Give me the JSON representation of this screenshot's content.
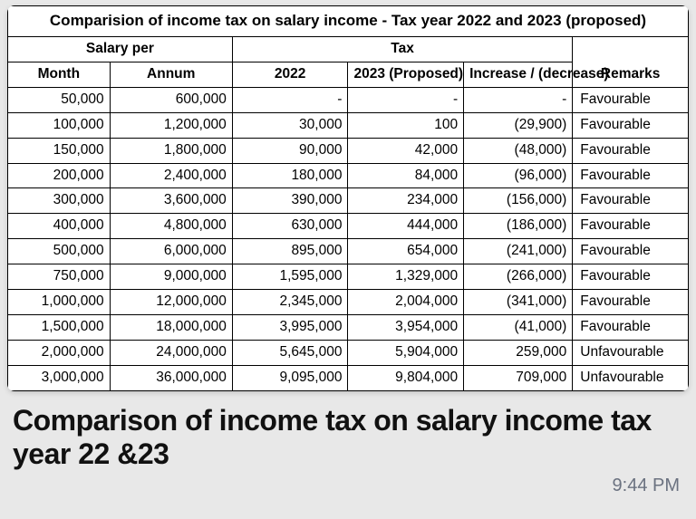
{
  "table": {
    "title": "Comparision of income tax on salary income - Tax year 2022 and 2023 (proposed)",
    "header_group_salary": "Salary per",
    "header_group_tax": "Tax",
    "columns": {
      "month": "Month",
      "annum": "Annum",
      "y2022": "2022",
      "y2023": "2023 (Proposed)",
      "incdec": "Increase / (decrease)",
      "remarks": "Remarks"
    },
    "rows": [
      {
        "month": "50,000",
        "annum": "600,000",
        "y2022": "-",
        "y2023": "-",
        "incdec": "-",
        "remarks": "Favourable"
      },
      {
        "month": "100,000",
        "annum": "1,200,000",
        "y2022": "30,000",
        "y2023": "100",
        "incdec": "(29,900)",
        "remarks": "Favourable"
      },
      {
        "month": "150,000",
        "annum": "1,800,000",
        "y2022": "90,000",
        "y2023": "42,000",
        "incdec": "(48,000)",
        "remarks": "Favourable"
      },
      {
        "month": "200,000",
        "annum": "2,400,000",
        "y2022": "180,000",
        "y2023": "84,000",
        "incdec": "(96,000)",
        "remarks": "Favourable"
      },
      {
        "month": "300,000",
        "annum": "3,600,000",
        "y2022": "390,000",
        "y2023": "234,000",
        "incdec": "(156,000)",
        "remarks": "Favourable"
      },
      {
        "month": "400,000",
        "annum": "4,800,000",
        "y2022": "630,000",
        "y2023": "444,000",
        "incdec": "(186,000)",
        "remarks": "Favourable"
      },
      {
        "month": "500,000",
        "annum": "6,000,000",
        "y2022": "895,000",
        "y2023": "654,000",
        "incdec": "(241,000)",
        "remarks": "Favourable"
      },
      {
        "month": "750,000",
        "annum": "9,000,000",
        "y2022": "1,595,000",
        "y2023": "1,329,000",
        "incdec": "(266,000)",
        "remarks": "Favourable"
      },
      {
        "month": "1,000,000",
        "annum": "12,000,000",
        "y2022": "2,345,000",
        "y2023": "2,004,000",
        "incdec": "(341,000)",
        "remarks": "Favourable"
      },
      {
        "month": "1,500,000",
        "annum": "18,000,000",
        "y2022": "3,995,000",
        "y2023": "3,954,000",
        "incdec": "(41,000)",
        "remarks": "Favourable"
      },
      {
        "month": "2,000,000",
        "annum": "24,000,000",
        "y2022": "5,645,000",
        "y2023": "5,904,000",
        "incdec": "259,000",
        "remarks": "Unfavourable"
      },
      {
        "month": "3,000,000",
        "annum": "36,000,000",
        "y2022": "9,095,000",
        "y2023": "9,804,000",
        "incdec": "709,000",
        "remarks": "Unfavourable"
      }
    ],
    "styling": {
      "border_color": "#000000",
      "background": "#ffffff",
      "font_size_cell": 15.5,
      "font_size_title": 17,
      "align_numeric": "right",
      "align_remarks": "left",
      "col_widths_pct": [
        15,
        18,
        17,
        17,
        16,
        17
      ]
    }
  },
  "caption": "Comparison of income tax on salary income tax year 22 &23",
  "timestamp": "9:44 PM",
  "colors": {
    "page_bg": "#e8e8e8",
    "card_bg": "#ffffff",
    "text": "#111111",
    "timestamp": "#6b7280"
  }
}
